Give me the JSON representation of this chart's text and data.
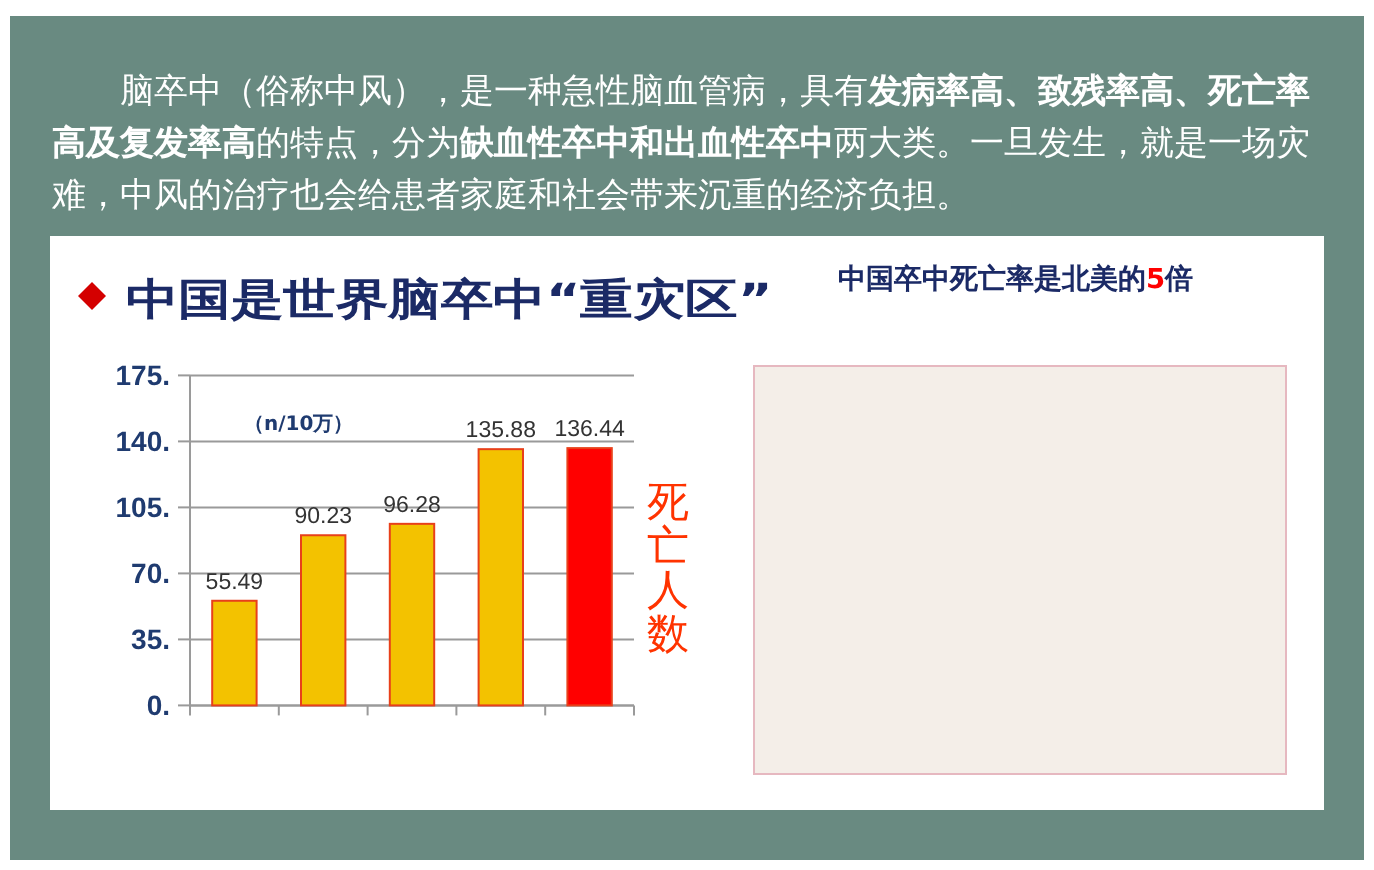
{
  "chart_data": {
    "type": "bar",
    "title": "中国是世界脑卒中“重灾区”",
    "categories": [
      null,
      null,
      null,
      null,
      null
    ],
    "values": [
      55.49,
      90.23,
      96.28,
      135.88,
      136.44
    ],
    "colors": [
      "#f3c200",
      "#f3c200",
      "#f3c200",
      "#f3c200",
      "#ff0000"
    ],
    "ylim": [
      0,
      175
    ],
    "yticks": [
      {
        "value": 0,
        "label": "0."
      },
      {
        "value": 35,
        "label": "35."
      },
      {
        "value": 70,
        "label": "70."
      },
      {
        "value": 105,
        "label": "105."
      },
      {
        "value": 140,
        "label": "140."
      },
      {
        "value": 175,
        "label": "175."
      }
    ],
    "grid": "y",
    "tick_labels": "y",
    "data_labels": true,
    "annotations": [
      "脑卒中（俗称中风），是一种急性脑血管病，具有**发病率高、致残率高、死亡率高及复发率高**的特点，分为**缺血性卒中和出血性卒中**两大类。一旦发生，就是一场灾难，中风的治疗也会给患者家庭和社会带来沉重的经济负担。",
      "（n/10万）",
      "死亡人数",
      "中国卒中死亡率是北美的5倍"
    ]
  }
}
